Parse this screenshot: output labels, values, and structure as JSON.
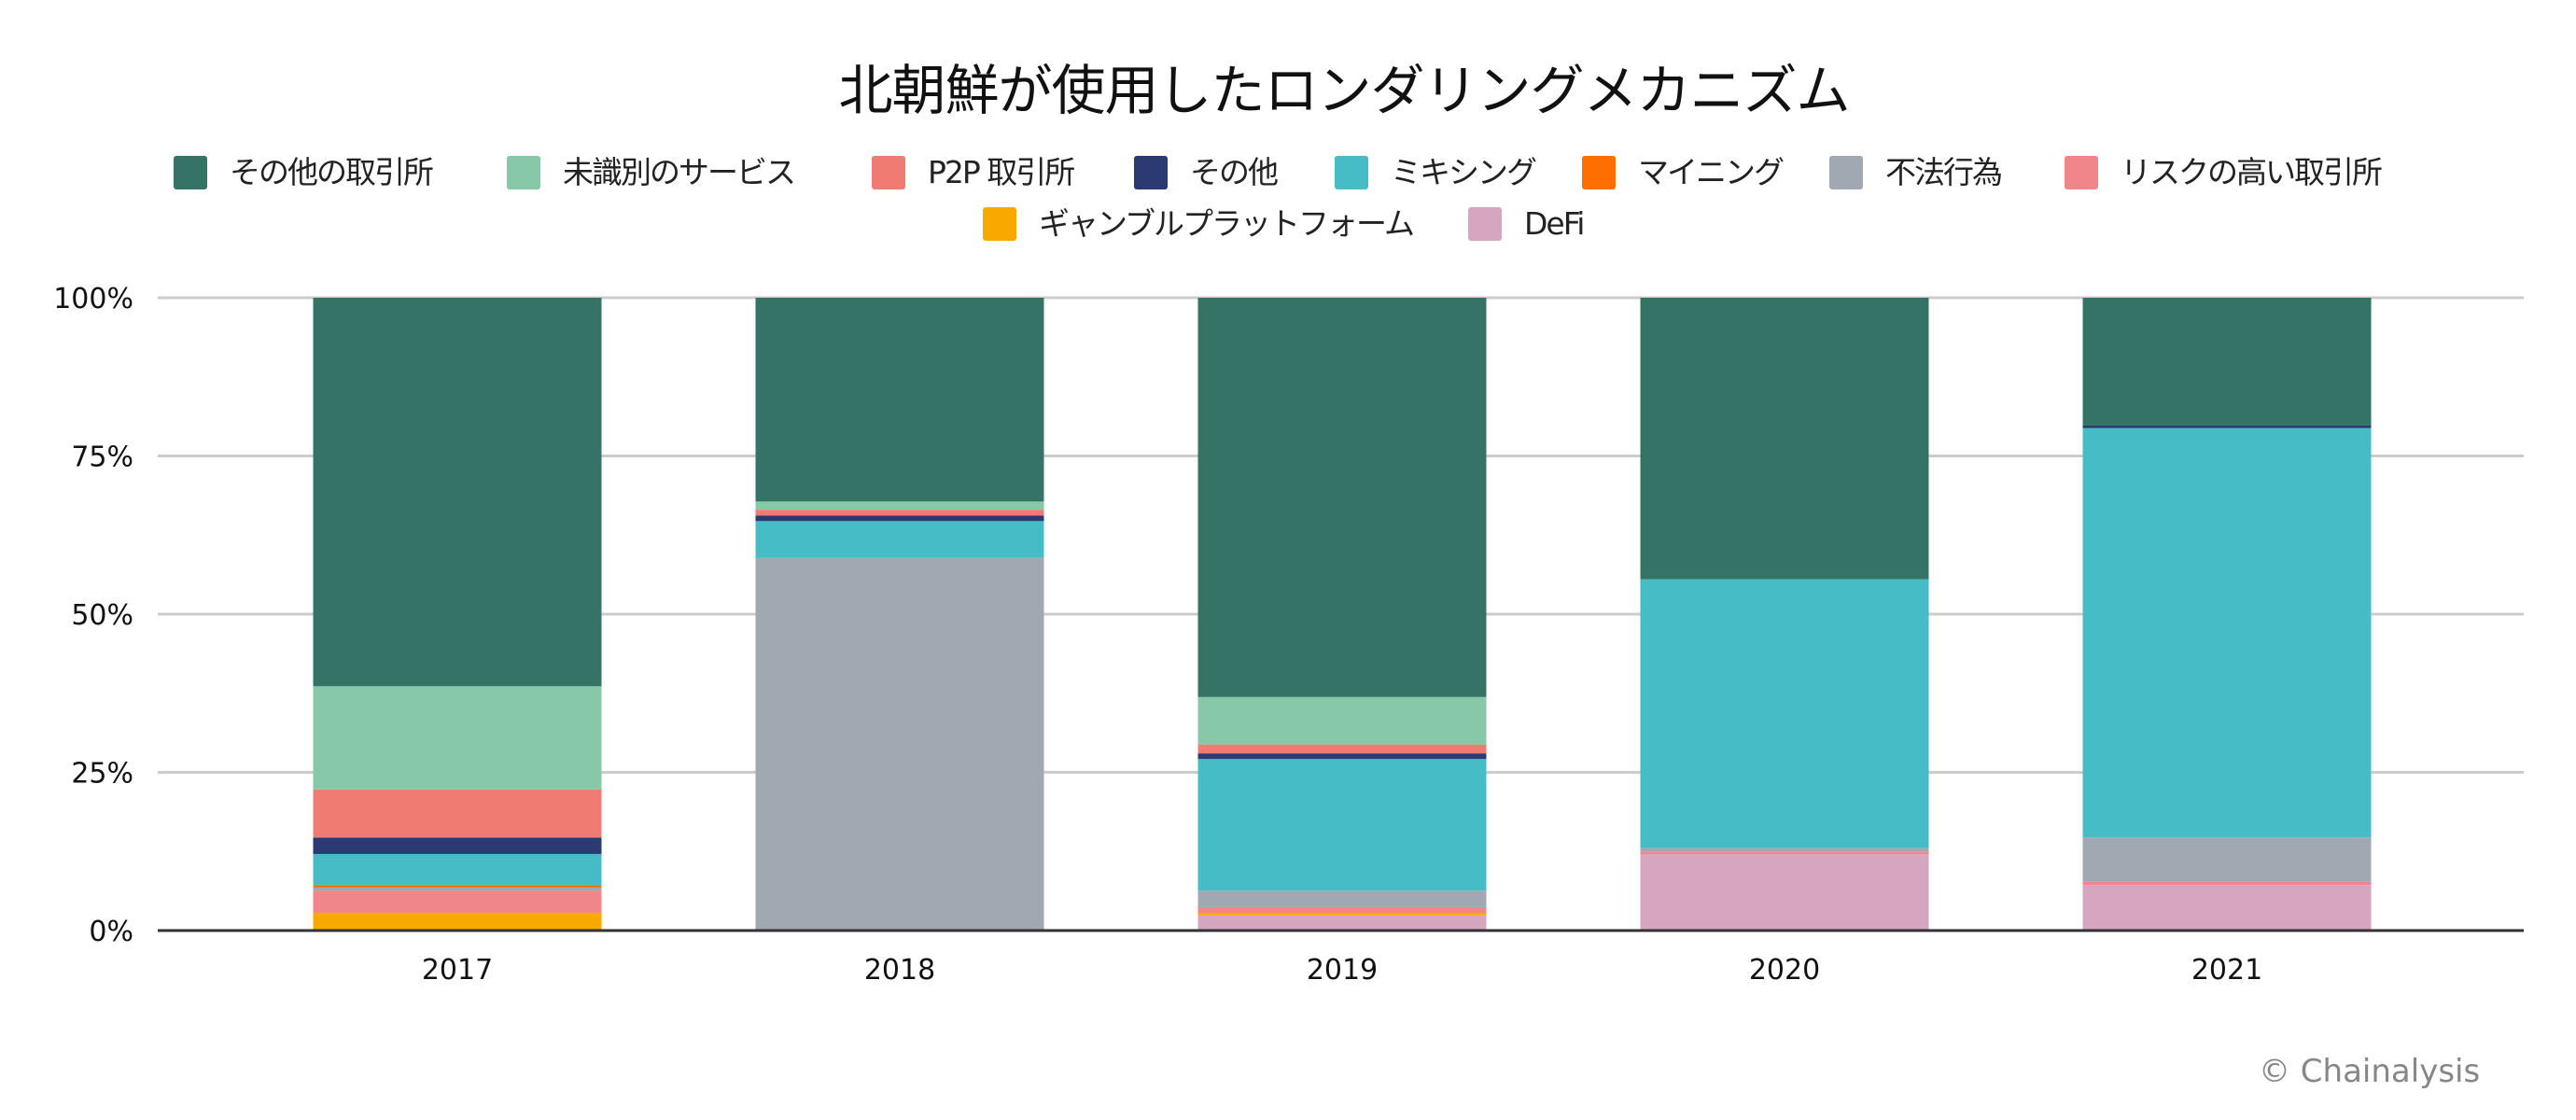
{
  "chart_data": {
    "type": "bar",
    "stacked": true,
    "normalized": true,
    "title": "北朝鮮が使用したロンダリングメカニズム",
    "xlabel": "",
    "ylabel": "",
    "ylim": [
      0,
      100
    ],
    "y_ticks": [
      "0%",
      "25%",
      "50%",
      "75%",
      "100%"
    ],
    "y_tick_values": [
      0,
      25,
      50,
      75,
      100
    ],
    "grid": true,
    "legend_position": "top",
    "categories": [
      "2017",
      "2018",
      "2019",
      "2020",
      "2021"
    ],
    "series": [
      {
        "name": "その他の取引所",
        "color": "#367367",
        "values": [
          61.4,
          32.2,
          63.1,
          44.5,
          20.2
        ]
      },
      {
        "name": "未識別のサービス",
        "color": "#87C8A8",
        "values": [
          16.3,
          1.3,
          7.5,
          0,
          0
        ]
      },
      {
        "name": "P2P 取引所",
        "color": "#F07B72",
        "values": [
          7.6,
          0.9,
          1.4,
          0,
          0
        ]
      },
      {
        "name": "その他",
        "color": "#2B3A72",
        "values": [
          2.6,
          0.9,
          0.9,
          0,
          0.4
        ]
      },
      {
        "name": "ミキシング",
        "color": "#46BCC6",
        "values": [
          4.9,
          5.7,
          20.8,
          42.5,
          64.7
        ]
      },
      {
        "name": "マイニング",
        "color": "#FF6F00",
        "values": [
          0.4,
          0,
          0,
          0,
          0
        ]
      },
      {
        "name": "不法行為",
        "color": "#A0A8B1",
        "values": [
          0.5,
          59.0,
          2.6,
          0.5,
          7.0
        ]
      },
      {
        "name": "リスクの高い取引所",
        "color": "#F0868A",
        "values": [
          3.5,
          0,
          0.9,
          0.4,
          0.5
        ]
      },
      {
        "name": "ギャンブルプラットフォーム",
        "color": "#F9A800",
        "values": [
          2.8,
          0,
          0.4,
          0,
          0
        ]
      },
      {
        "name": "DeFi",
        "color": "#D6A5C0",
        "values": [
          0,
          0,
          2.4,
          12.1,
          7.2
        ]
      }
    ]
  },
  "watermark": "© Chainalysis",
  "colors": {
    "gridline": "#CCCCCC",
    "axis": "#333333"
  }
}
